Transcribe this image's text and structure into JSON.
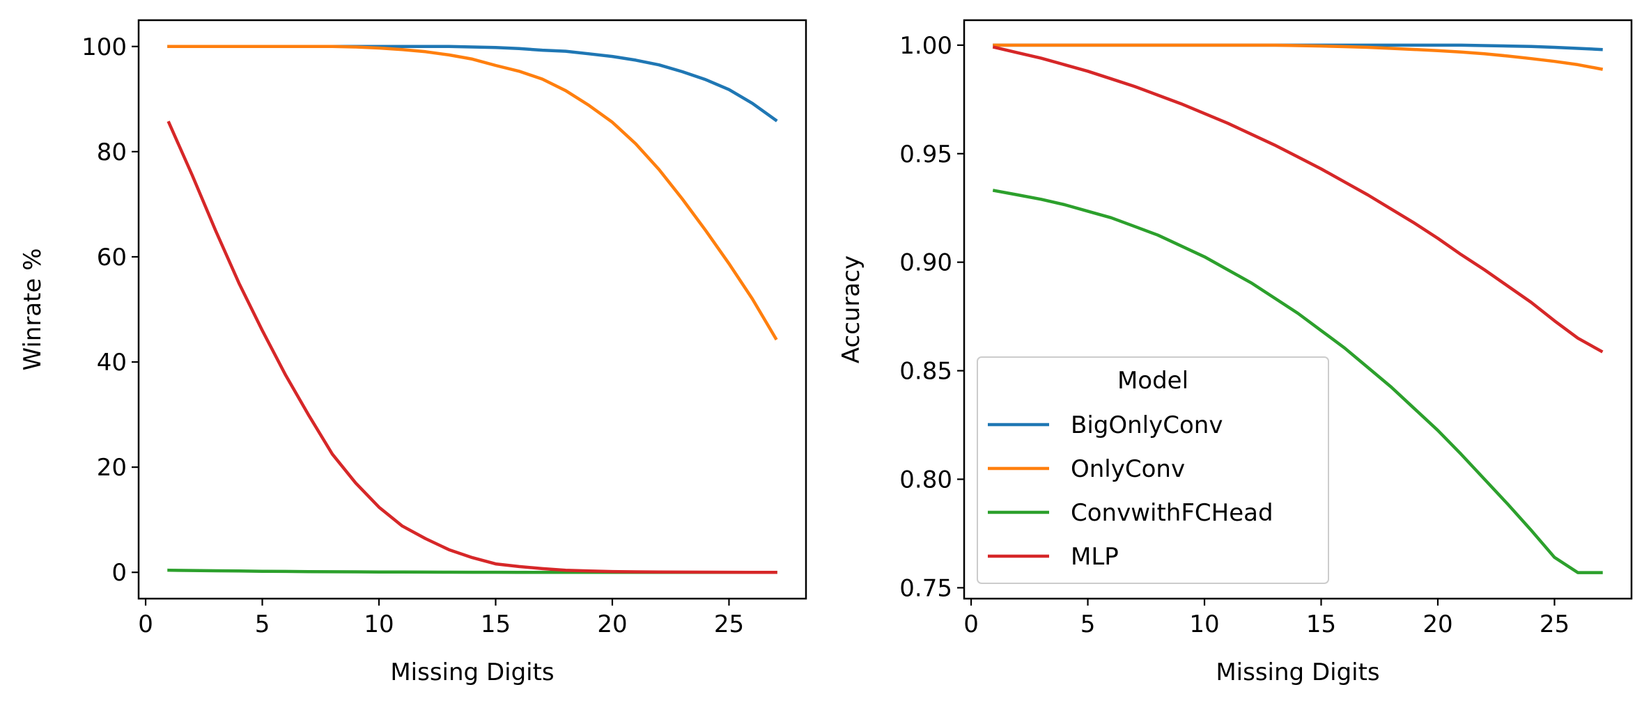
{
  "chart_data": [
    {
      "type": "line",
      "xlabel": "Missing Digits",
      "ylabel": "Winrate %",
      "xlim": [
        -0.3,
        28.3
      ],
      "ylim": [
        -5,
        105
      ],
      "xticks": [
        0,
        5,
        10,
        15,
        20,
        25
      ],
      "xtick_labels": [
        "0",
        "5",
        "10",
        "15",
        "20",
        "25"
      ],
      "yticks": [
        0,
        20,
        40,
        60,
        80,
        100
      ],
      "ytick_labels": [
        "0",
        "20",
        "40",
        "60",
        "80",
        "100"
      ],
      "grid": false,
      "x": [
        1,
        2,
        3,
        4,
        5,
        6,
        7,
        8,
        9,
        10,
        11,
        12,
        13,
        14,
        15,
        16,
        17,
        18,
        19,
        20,
        21,
        22,
        23,
        24,
        25,
        26,
        27
      ],
      "series": [
        {
          "key": "BigOnlyConv",
          "color": "#1f77b4",
          "values": [
            100,
            100,
            100,
            100,
            100,
            100,
            100,
            100,
            100,
            100,
            100,
            100,
            100,
            99.9,
            99.8,
            99.6,
            99.3,
            99.1,
            98.6,
            98.1,
            97.4,
            96.5,
            95.2,
            93.7,
            91.8,
            89.2,
            86
          ]
        },
        {
          "key": "OnlyConv",
          "color": "#ff7f0e",
          "values": [
            100,
            100,
            100,
            100,
            100,
            100,
            100,
            100,
            99.9,
            99.7,
            99.4,
            99,
            98.4,
            97.6,
            96.4,
            95.3,
            93.8,
            91.6,
            88.8,
            85.6,
            81.5,
            76.6,
            71,
            65,
            58.7,
            52,
            44.5
          ]
        },
        {
          "key": "ConvwithFCHead",
          "color": "#2ca02c",
          "values": [
            0.4,
            0.35,
            0.3,
            0.25,
            0.2,
            0.17,
            0.14,
            0.11,
            0.09,
            0.07,
            0.05,
            0.04,
            0.03,
            0.02,
            0.02,
            0.01,
            0.01,
            0.01,
            0,
            0,
            0,
            0,
            0,
            0,
            0,
            0,
            0
          ]
        },
        {
          "key": "MLP",
          "color": "#d62728",
          "values": [
            85.5,
            75.5,
            65,
            55,
            46,
            37.5,
            29.8,
            22.5,
            17,
            12.4,
            8.8,
            6.4,
            4.3,
            2.8,
            1.6,
            1.1,
            0.7,
            0.4,
            0.25,
            0.15,
            0.1,
            0.06,
            0.04,
            0.03,
            0.02,
            0.01,
            0.01
          ]
        }
      ]
    },
    {
      "type": "line",
      "xlabel": "Missing Digits",
      "ylabel": "Accuracy",
      "xlim": [
        -0.3,
        28.3
      ],
      "ylim": [
        0.745,
        1.0115
      ],
      "xticks": [
        0,
        5,
        10,
        15,
        20,
        25
      ],
      "xtick_labels": [
        "0",
        "5",
        "10",
        "15",
        "20",
        "25"
      ],
      "yticks": [
        0.75,
        0.8,
        0.85,
        0.9,
        0.95,
        1.0
      ],
      "ytick_labels": [
        "0.75",
        "0.80",
        "0.85",
        "0.90",
        "0.95",
        "1.00"
      ],
      "grid": false,
      "legend": {
        "title": "Model",
        "placement": "lower-left",
        "entries": [
          "BigOnlyConv",
          "OnlyConv",
          "ConvwithFCHead",
          "MLP"
        ]
      },
      "x": [
        1,
        2,
        3,
        4,
        5,
        6,
        7,
        8,
        9,
        10,
        11,
        12,
        13,
        14,
        15,
        16,
        17,
        18,
        19,
        20,
        21,
        22,
        23,
        24,
        25,
        26,
        27
      ],
      "series": [
        {
          "name": "BigOnlyConv",
          "color": "#1f77b4",
          "values": [
            1,
            1,
            1,
            1,
            1,
            1,
            1,
            1,
            1,
            1,
            1,
            1,
            1,
            1,
            1,
            1,
            1,
            1,
            1,
            1,
            1,
            0.9998,
            0.9996,
            0.9994,
            0.999,
            0.9985,
            0.998
          ]
        },
        {
          "name": "OnlyConv",
          "color": "#ff7f0e",
          "values": [
            1,
            1,
            1,
            1,
            1,
            1,
            1,
            1,
            1,
            1,
            1,
            1,
            1,
            0.9998,
            0.9996,
            0.9993,
            0.999,
            0.9985,
            0.998,
            0.9975,
            0.9968,
            0.996,
            0.995,
            0.9938,
            0.9925,
            0.991,
            0.989
          ]
        },
        {
          "name": "ConvwithFCHead",
          "color": "#2ca02c",
          "values": [
            0.933,
            0.931,
            0.929,
            0.9265,
            0.9235,
            0.9205,
            0.9165,
            0.9125,
            0.9075,
            0.9025,
            0.8965,
            0.8905,
            0.8835,
            0.8765,
            0.8685,
            0.8605,
            0.8515,
            0.8425,
            0.8325,
            0.8225,
            0.8115,
            0.8,
            0.7885,
            0.7765,
            0.764,
            0.757,
            0.757
          ]
        },
        {
          "name": "MLP",
          "color": "#d62728",
          "values": [
            0.999,
            0.9965,
            0.994,
            0.991,
            0.988,
            0.9845,
            0.981,
            0.977,
            0.973,
            0.9685,
            0.964,
            0.959,
            0.954,
            0.9485,
            0.943,
            0.937,
            0.931,
            0.9245,
            0.918,
            0.911,
            0.9035,
            0.8965,
            0.889,
            0.8815,
            0.873,
            0.865,
            0.859
          ]
        }
      ]
    }
  ]
}
